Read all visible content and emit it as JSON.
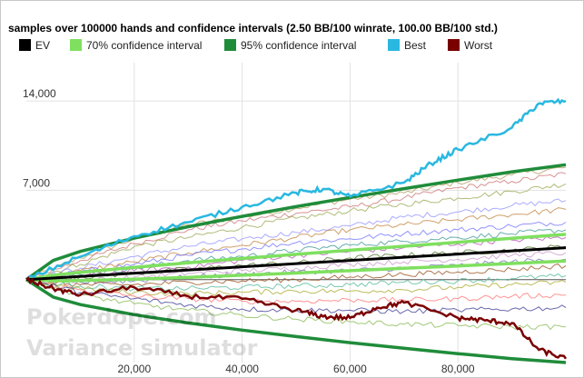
{
  "chart_data": {
    "type": "line",
    "title": "samples over 100000 hands and confidence intervals (2.50 BB/100 winrate, 100.00 BB/100 std.)",
    "xlabel": "",
    "ylabel": "",
    "xlim": [
      0,
      100000
    ],
    "ylim": [
      -6500,
      17000
    ],
    "x_ticks": [
      20000,
      40000,
      60000,
      80000
    ],
    "x_tick_labels": [
      "20,000",
      "40,000",
      "60,000",
      "80,000"
    ],
    "y_ticks": [
      7000,
      14000
    ],
    "y_tick_labels": [
      "7,000",
      "14,000"
    ],
    "grid": true,
    "legend_position": "top",
    "winrate_bb_per_100": 2.5,
    "std_bb_per_100": 100,
    "hands": 100000,
    "legend": [
      {
        "name": "EV",
        "color": "#000000"
      },
      {
        "name": "70% confidence interval",
        "color": "#7fe05f"
      },
      {
        "name": "95% confidence interval",
        "color": "#1f8c3a"
      },
      {
        "name": "Best",
        "color": "#29b8e0"
      },
      {
        "name": "Worst",
        "color": "#7a0000"
      }
    ],
    "series": [
      {
        "name": "EV",
        "color": "#000000",
        "x": [
          0,
          100000
        ],
        "y": [
          0,
          2500
        ]
      },
      {
        "name": "70% confidence interval",
        "color": "#7fe05f",
        "x": [
          0,
          5000,
          10000,
          20000,
          30000,
          40000,
          50000,
          60000,
          70000,
          80000,
          90000,
          100000
        ],
        "y_upper": [
          0,
          348,
          566,
          965,
          1320,
          1656,
          1983,
          2303,
          2618,
          2930,
          3238,
          3545
        ],
        "y_lower": [
          0,
          -98,
          -66,
          35,
          180,
          344,
          517,
          697,
          882,
          1070,
          1262,
          1455
        ]
      },
      {
        "name": "95% confidence interval",
        "color": "#1f8c3a",
        "x": [
          0,
          5000,
          10000,
          20000,
          30000,
          40000,
          50000,
          60000,
          70000,
          80000,
          90000,
          100000
        ],
        "y_upper": [
          0,
          1501,
          2210,
          3248,
          4145,
          4958,
          5719,
          6441,
          7133,
          7800,
          8446,
          9000
        ],
        "y_lower": [
          0,
          -1376,
          -1960,
          -2748,
          -3395,
          -3958,
          -4460,
          -4941,
          -5381,
          -5800,
          -6196,
          -6500
        ]
      },
      {
        "name": "Best",
        "color": "#29b8e0",
        "x": [
          0,
          10000,
          20000,
          30000,
          40000,
          50000,
          55000,
          60000,
          70000,
          75000,
          80000,
          90000,
          95000,
          100000
        ],
        "y": [
          0,
          1800,
          3400,
          4500,
          5700,
          6800,
          7100,
          6500,
          7600,
          9100,
          10200,
          11900,
          13800,
          14000
        ]
      },
      {
        "name": "Worst",
        "color": "#7a0000",
        "x": [
          0,
          5000,
          10000,
          20000,
          30000,
          40000,
          50000,
          55000,
          60000,
          65000,
          70000,
          80000,
          85000,
          90000,
          95000,
          100000
        ],
        "y": [
          0,
          -700,
          -1200,
          -600,
          -1300,
          -1500,
          -2400,
          -2900,
          -3000,
          -2200,
          -1800,
          -3000,
          -3200,
          -3400,
          -5500,
          -6200
        ]
      }
    ],
    "sample_series": [
      {
        "color": "#b8a36a",
        "x": [
          0,
          10000,
          20000,
          30000,
          40000,
          50000,
          60000,
          70000,
          80000,
          90000,
          100000
        ],
        "y": [
          0,
          1700,
          3200,
          4300,
          4900,
          5600,
          6300,
          6800,
          7600,
          8200,
          8800
        ]
      },
      {
        "color": "#d08080",
        "x": [
          0,
          10000,
          20000,
          30000,
          40000,
          50000,
          60000,
          70000,
          80000,
          90000,
          100000
        ],
        "y": [
          0,
          1500,
          2800,
          3900,
          4600,
          5200,
          5700,
          6400,
          7200,
          7700,
          8300
        ]
      },
      {
        "color": "#a0b060",
        "x": [
          0,
          10000,
          20000,
          30000,
          40000,
          50000,
          60000,
          70000,
          80000,
          90000,
          100000
        ],
        "y": [
          0,
          1200,
          2600,
          3300,
          4100,
          4800,
          5400,
          5900,
          6400,
          6900,
          7500
        ]
      },
      {
        "color": "#9c9cff",
        "x": [
          0,
          10000,
          20000,
          30000,
          40000,
          50000,
          60000,
          70000,
          80000,
          90000,
          100000
        ],
        "y": [
          0,
          900,
          1800,
          2600,
          3200,
          3700,
          4200,
          4900,
          5300,
          5800,
          6200
        ]
      },
      {
        "color": "#c88f50",
        "x": [
          0,
          10000,
          20000,
          30000,
          40000,
          50000,
          60000,
          70000,
          80000,
          90000,
          100000
        ],
        "y": [
          0,
          700,
          1400,
          2100,
          2700,
          3300,
          3900,
          4300,
          4700,
          5100,
          5500
        ]
      },
      {
        "color": "#7f7fff",
        "x": [
          0,
          10000,
          20000,
          30000,
          40000,
          50000,
          60000,
          70000,
          80000,
          90000,
          100000
        ],
        "y": [
          0,
          600,
          1200,
          1900,
          2400,
          2900,
          3200,
          3600,
          3900,
          4200,
          4500
        ]
      },
      {
        "color": "#50a0a0",
        "x": [
          0,
          10000,
          20000,
          30000,
          40000,
          50000,
          60000,
          70000,
          80000,
          90000,
          100000
        ],
        "y": [
          0,
          400,
          900,
          1500,
          1800,
          2300,
          2700,
          3000,
          3300,
          3600,
          3900
        ]
      },
      {
        "color": "#c060c0",
        "x": [
          0,
          10000,
          20000,
          30000,
          40000,
          50000,
          60000,
          70000,
          80000,
          90000,
          100000
        ],
        "y": [
          0,
          300,
          700,
          1000,
          1500,
          1900,
          2200,
          2500,
          2800,
          3100,
          3300
        ]
      },
      {
        "color": "#608040",
        "x": [
          0,
          10000,
          20000,
          30000,
          40000,
          50000,
          60000,
          70000,
          80000,
          90000,
          100000
        ],
        "y": [
          0,
          200,
          500,
          800,
          1100,
          1300,
          1700,
          1900,
          2100,
          2300,
          2600
        ]
      },
      {
        "color": "#d0a0d0",
        "x": [
          0,
          10000,
          20000,
          30000,
          40000,
          50000,
          60000,
          70000,
          80000,
          90000,
          100000
        ],
        "y": [
          0,
          -100,
          200,
          500,
          700,
          900,
          1200,
          1400,
          1600,
          1900,
          2100
        ]
      },
      {
        "color": "#8080c0",
        "x": [
          0,
          10000,
          20000,
          30000,
          40000,
          50000,
          60000,
          70000,
          80000,
          90000,
          100000
        ],
        "y": [
          0,
          -200,
          -100,
          200,
          400,
          600,
          700,
          900,
          1100,
          1400,
          1600
        ]
      },
      {
        "color": "#a06030",
        "x": [
          0,
          10000,
          20000,
          30000,
          40000,
          50000,
          60000,
          70000,
          80000,
          90000,
          100000
        ],
        "y": [
          0,
          -400,
          -400,
          -200,
          -100,
          0,
          200,
          400,
          600,
          800,
          1100
        ]
      },
      {
        "color": "#60c0a0",
        "x": [
          0,
          10000,
          20000,
          30000,
          40000,
          50000,
          60000,
          70000,
          80000,
          90000,
          100000
        ],
        "y": [
          0,
          -500,
          -700,
          -700,
          -600,
          -500,
          -400,
          -200,
          -100,
          100,
          300
        ]
      },
      {
        "color": "#b0b040",
        "x": [
          0,
          10000,
          20000,
          30000,
          40000,
          50000,
          60000,
          70000,
          80000,
          90000,
          100000
        ],
        "y": [
          0,
          -700,
          -1000,
          -1100,
          -1000,
          -900,
          -900,
          -800,
          -600,
          -400,
          -200
        ]
      },
      {
        "color": "#ff8080",
        "x": [
          0,
          10000,
          20000,
          30000,
          40000,
          50000,
          60000,
          70000,
          80000,
          90000,
          100000
        ],
        "y": [
          0,
          -800,
          -1300,
          -1500,
          -1700,
          -1700,
          -1600,
          -1600,
          -1500,
          -1300,
          -1200
        ]
      },
      {
        "color": "#4d4da0",
        "x": [
          0,
          10000,
          20000,
          30000,
          40000,
          50000,
          60000,
          70000,
          80000,
          90000,
          100000
        ],
        "y": [
          0,
          -1000,
          -1500,
          -2000,
          -2300,
          -2400,
          -2400,
          -2500,
          -2400,
          -2300,
          -2200
        ]
      },
      {
        "color": "#90c060",
        "x": [
          0,
          10000,
          20000,
          30000,
          40000,
          50000,
          60000,
          70000,
          80000,
          90000,
          100000
        ],
        "y": [
          0,
          -1200,
          -1900,
          -2400,
          -2800,
          -3100,
          -3300,
          -3500,
          -3600,
          -3700,
          -3700
        ]
      }
    ]
  },
  "watermark": {
    "line1": "Pokerdope.com",
    "line2": "Variance simulator"
  }
}
